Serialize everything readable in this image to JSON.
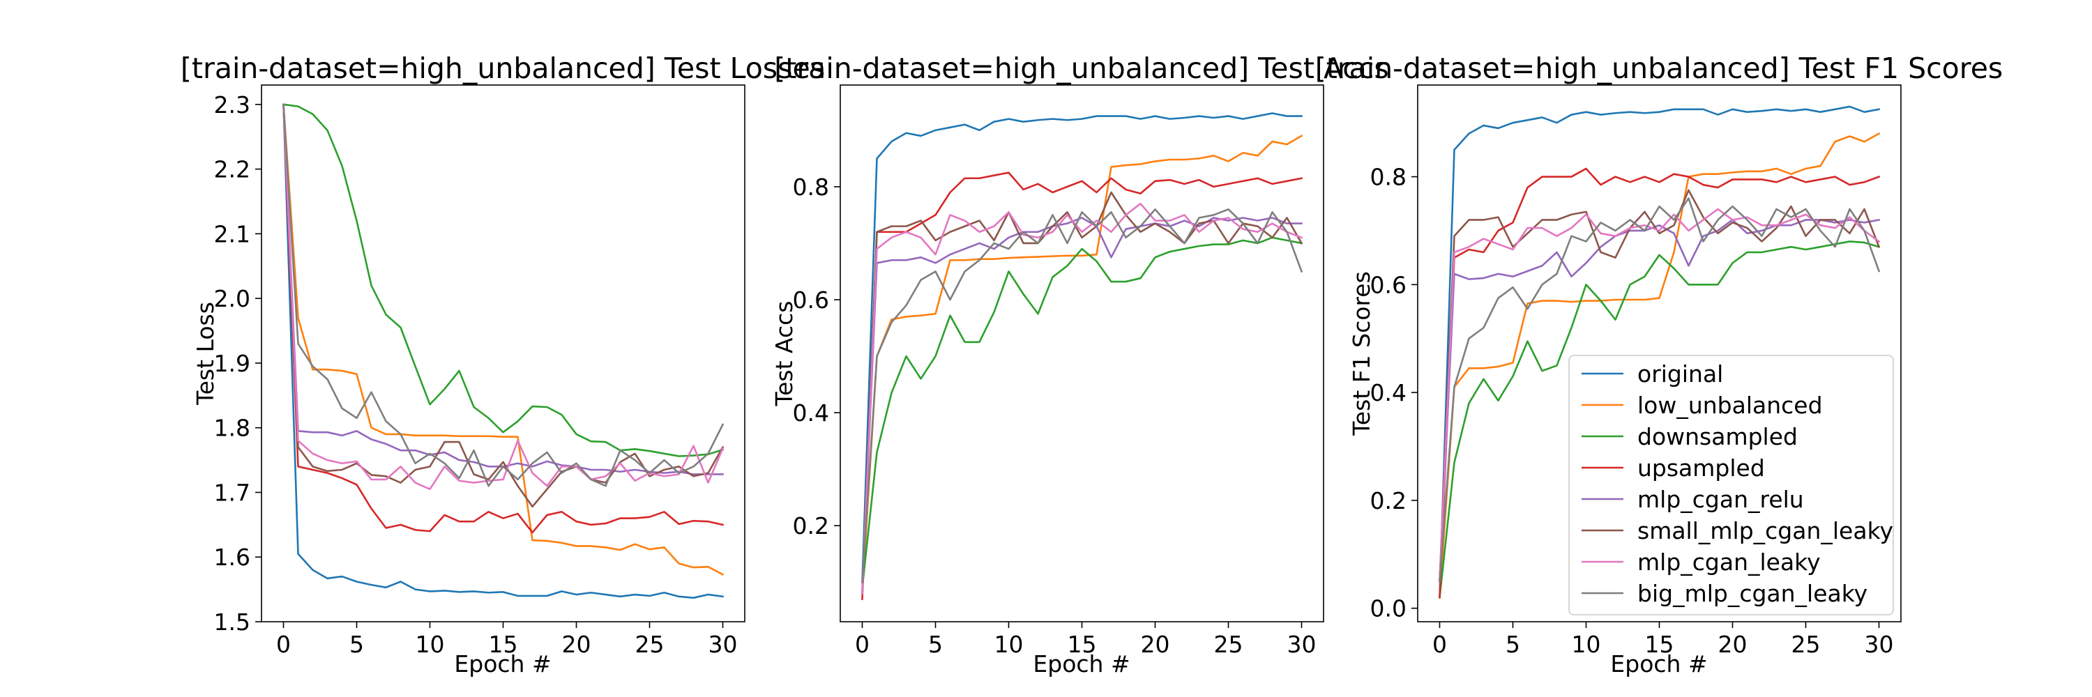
{
  "series_colors": [
    "#1f77b4",
    "#ff7f0e",
    "#2ca02c",
    "#d62728",
    "#9467bd",
    "#8c564b",
    "#e377c2",
    "#7f7f7f"
  ],
  "chart_data": [
    {
      "type": "line",
      "title": "[train-dataset=high_unbalanced] Test Losses",
      "xlabel": "Epoch #",
      "ylabel": "Test Loss",
      "xlim": [
        -1.5,
        31.5
      ],
      "ylim": [
        1.5,
        2.33
      ],
      "xticks": [
        0,
        5,
        10,
        15,
        20,
        25,
        30
      ],
      "yticks": [
        1.5,
        1.6,
        1.7,
        1.8,
        1.9,
        2.0,
        2.1,
        2.2,
        2.3
      ],
      "ytick_labels": [
        "1.5",
        "1.6",
        "1.7",
        "1.8",
        "1.9",
        "2.0",
        "2.1",
        "2.2",
        "2.3"
      ],
      "legend": null,
      "x": [
        0,
        1,
        2,
        3,
        4,
        5,
        6,
        7,
        8,
        9,
        10,
        11,
        12,
        13,
        14,
        15,
        16,
        17,
        18,
        19,
        20,
        21,
        22,
        23,
        24,
        25,
        26,
        27,
        28,
        29,
        30
      ],
      "series": [
        {
          "name": "original",
          "values": [
            2.3,
            1.605,
            1.58,
            1.567,
            1.57,
            1.562,
            1.557,
            1.553,
            1.562,
            1.55,
            1.547,
            1.548,
            1.546,
            1.547,
            1.545,
            1.546,
            1.54,
            1.54,
            1.54,
            1.547,
            1.542,
            1.545,
            1.542,
            1.539,
            1.542,
            1.54,
            1.545,
            1.539,
            1.537,
            1.542,
            1.539
          ]
        },
        {
          "name": "low_unbalanced",
          "values": [
            2.3,
            1.97,
            1.89,
            1.89,
            1.888,
            1.883,
            1.8,
            1.79,
            1.79,
            1.788,
            1.788,
            1.788,
            1.787,
            1.787,
            1.787,
            1.786,
            1.786,
            1.626,
            1.625,
            1.622,
            1.617,
            1.617,
            1.615,
            1.611,
            1.62,
            1.612,
            1.615,
            1.59,
            1.584,
            1.585,
            1.573
          ]
        },
        {
          "name": "downsampled",
          "values": [
            2.3,
            2.297,
            2.285,
            2.26,
            2.205,
            2.12,
            2.02,
            1.975,
            1.955,
            1.895,
            1.836,
            1.86,
            1.888,
            1.832,
            1.815,
            1.793,
            1.81,
            1.833,
            1.832,
            1.82,
            1.79,
            1.779,
            1.778,
            1.765,
            1.767,
            1.764,
            1.76,
            1.756,
            1.757,
            1.759,
            1.766
          ]
        },
        {
          "name": "upsampled",
          "values": [
            2.3,
            1.74,
            1.735,
            1.73,
            1.722,
            1.712,
            1.675,
            1.645,
            1.65,
            1.642,
            1.64,
            1.665,
            1.655,
            1.655,
            1.67,
            1.66,
            1.667,
            1.638,
            1.665,
            1.67,
            1.655,
            1.65,
            1.652,
            1.66,
            1.66,
            1.662,
            1.67,
            1.651,
            1.656,
            1.655,
            1.65
          ]
        },
        {
          "name": "mlp_cgan_relu",
          "values": [
            2.3,
            1.795,
            1.793,
            1.793,
            1.788,
            1.795,
            1.782,
            1.775,
            1.765,
            1.765,
            1.758,
            1.762,
            1.75,
            1.747,
            1.74,
            1.74,
            1.745,
            1.74,
            1.748,
            1.742,
            1.74,
            1.735,
            1.735,
            1.732,
            1.735,
            1.732,
            1.73,
            1.732,
            1.728,
            1.728,
            1.728
          ]
        },
        {
          "name": "small_mlp_cgan_leaky",
          "values": [
            2.3,
            1.77,
            1.74,
            1.733,
            1.735,
            1.745,
            1.727,
            1.725,
            1.715,
            1.735,
            1.74,
            1.778,
            1.778,
            1.728,
            1.72,
            1.747,
            1.71,
            1.678,
            1.705,
            1.732,
            1.74,
            1.72,
            1.715,
            1.747,
            1.76,
            1.725,
            1.735,
            1.74,
            1.725,
            1.73,
            1.77
          ]
        },
        {
          "name": "mlp_cgan_leaky",
          "values": [
            2.3,
            1.78,
            1.76,
            1.75,
            1.745,
            1.748,
            1.72,
            1.72,
            1.74,
            1.715,
            1.705,
            1.74,
            1.718,
            1.715,
            1.718,
            1.72,
            1.78,
            1.73,
            1.71,
            1.74,
            1.74,
            1.72,
            1.725,
            1.745,
            1.718,
            1.73,
            1.725,
            1.728,
            1.772,
            1.715,
            1.768
          ]
        },
        {
          "name": "big_mlp_cgan_leaky",
          "values": [
            2.3,
            1.93,
            1.895,
            1.875,
            1.83,
            1.815,
            1.855,
            1.81,
            1.79,
            1.745,
            1.76,
            1.745,
            1.722,
            1.765,
            1.71,
            1.74,
            1.72,
            1.745,
            1.762,
            1.73,
            1.745,
            1.72,
            1.71,
            1.765,
            1.75,
            1.73,
            1.75,
            1.73,
            1.74,
            1.76,
            1.805
          ]
        }
      ]
    },
    {
      "type": "line",
      "title": "[train-dataset=high_unbalanced] Test Accs",
      "xlabel": "Epoch #",
      "ylabel": "Test Accs",
      "xlim": [
        -1.5,
        31.5
      ],
      "ylim": [
        0.03,
        0.98
      ],
      "xticks": [
        0,
        5,
        10,
        15,
        20,
        25,
        30
      ],
      "yticks": [
        0.2,
        0.4,
        0.6,
        0.8
      ],
      "ytick_labels": [
        "0.2",
        "0.4",
        "0.6",
        "0.8"
      ],
      "legend": null,
      "x": [
        0,
        1,
        2,
        3,
        4,
        5,
        6,
        7,
        8,
        9,
        10,
        11,
        12,
        13,
        14,
        15,
        16,
        17,
        18,
        19,
        20,
        21,
        22,
        23,
        24,
        25,
        26,
        27,
        28,
        29,
        30
      ],
      "series": [
        {
          "name": "original",
          "values": [
            0.1,
            0.85,
            0.88,
            0.895,
            0.89,
            0.9,
            0.905,
            0.91,
            0.9,
            0.915,
            0.92,
            0.915,
            0.918,
            0.92,
            0.918,
            0.92,
            0.925,
            0.925,
            0.925,
            0.92,
            0.925,
            0.92,
            0.922,
            0.925,
            0.922,
            0.925,
            0.92,
            0.925,
            0.93,
            0.925,
            0.925
          ]
        },
        {
          "name": "low_unbalanced",
          "values": [
            0.08,
            0.5,
            0.565,
            0.57,
            0.572,
            0.575,
            0.67,
            0.67,
            0.672,
            0.672,
            0.674,
            0.675,
            0.676,
            0.677,
            0.678,
            0.678,
            0.68,
            0.835,
            0.838,
            0.84,
            0.845,
            0.848,
            0.848,
            0.85,
            0.855,
            0.845,
            0.86,
            0.855,
            0.88,
            0.875,
            0.89
          ]
        },
        {
          "name": "downsampled",
          "values": [
            0.09,
            0.33,
            0.435,
            0.5,
            0.46,
            0.5,
            0.572,
            0.525,
            0.525,
            0.578,
            0.65,
            0.61,
            0.575,
            0.64,
            0.66,
            0.69,
            0.668,
            0.632,
            0.632,
            0.638,
            0.675,
            0.685,
            0.69,
            0.695,
            0.698,
            0.698,
            0.705,
            0.7,
            0.71,
            0.705,
            0.7
          ]
        },
        {
          "name": "upsampled",
          "values": [
            0.07,
            0.72,
            0.72,
            0.72,
            0.735,
            0.75,
            0.79,
            0.815,
            0.815,
            0.82,
            0.825,
            0.795,
            0.805,
            0.79,
            0.8,
            0.81,
            0.79,
            0.815,
            0.795,
            0.788,
            0.81,
            0.812,
            0.805,
            0.812,
            0.8,
            0.805,
            0.81,
            0.815,
            0.805,
            0.81,
            0.815
          ]
        },
        {
          "name": "mlp_cgan_relu",
          "values": [
            0.08,
            0.665,
            0.67,
            0.67,
            0.675,
            0.665,
            0.68,
            0.69,
            0.7,
            0.69,
            0.71,
            0.72,
            0.72,
            0.73,
            0.735,
            0.745,
            0.73,
            0.675,
            0.725,
            0.73,
            0.735,
            0.73,
            0.74,
            0.73,
            0.745,
            0.74,
            0.745,
            0.74,
            0.745,
            0.735,
            0.735
          ]
        },
        {
          "name": "small_mlp_cgan_leaky",
          "values": [
            0.08,
            0.72,
            0.73,
            0.73,
            0.74,
            0.705,
            0.72,
            0.73,
            0.74,
            0.705,
            0.755,
            0.7,
            0.7,
            0.73,
            0.755,
            0.71,
            0.73,
            0.79,
            0.75,
            0.72,
            0.735,
            0.72,
            0.7,
            0.735,
            0.74,
            0.7,
            0.735,
            0.73,
            0.71,
            0.745,
            0.7
          ]
        },
        {
          "name": "mlp_cgan_leaky",
          "values": [
            0.08,
            0.69,
            0.71,
            0.72,
            0.71,
            0.68,
            0.75,
            0.74,
            0.72,
            0.73,
            0.755,
            0.715,
            0.71,
            0.72,
            0.75,
            0.72,
            0.74,
            0.72,
            0.75,
            0.77,
            0.74,
            0.74,
            0.75,
            0.72,
            0.74,
            0.745,
            0.725,
            0.72,
            0.735,
            0.72,
            0.71
          ]
        },
        {
          "name": "big_mlp_cgan_leaky",
          "values": [
            0.1,
            0.5,
            0.56,
            0.59,
            0.635,
            0.65,
            0.6,
            0.65,
            0.67,
            0.7,
            0.69,
            0.72,
            0.7,
            0.75,
            0.7,
            0.755,
            0.73,
            0.755,
            0.71,
            0.73,
            0.76,
            0.73,
            0.7,
            0.745,
            0.75,
            0.76,
            0.735,
            0.7,
            0.755,
            0.72,
            0.65
          ]
        }
      ]
    },
    {
      "type": "line",
      "title": "[train-dataset=high_unbalanced] Test F1 Scores",
      "xlabel": "Epoch #",
      "ylabel": "Test F1 Scores",
      "xlim": [
        -1.5,
        31.5
      ],
      "ylim": [
        -0.025,
        0.97
      ],
      "xticks": [
        0,
        5,
        10,
        15,
        20,
        25,
        30
      ],
      "yticks": [
        0.0,
        0.2,
        0.4,
        0.6,
        0.8
      ],
      "ytick_labels": [
        "0.0",
        "0.2",
        "0.4",
        "0.6",
        "0.8"
      ],
      "legend": "lower-right",
      "x": [
        0,
        1,
        2,
        3,
        4,
        5,
        6,
        7,
        8,
        9,
        10,
        11,
        12,
        13,
        14,
        15,
        16,
        17,
        18,
        19,
        20,
        21,
        22,
        23,
        24,
        25,
        26,
        27,
        28,
        29,
        30
      ],
      "series": [
        {
          "name": "original",
          "values": [
            0.02,
            0.85,
            0.88,
            0.895,
            0.89,
            0.9,
            0.905,
            0.91,
            0.9,
            0.915,
            0.92,
            0.915,
            0.918,
            0.92,
            0.918,
            0.92,
            0.925,
            0.925,
            0.925,
            0.915,
            0.925,
            0.92,
            0.922,
            0.925,
            0.922,
            0.925,
            0.92,
            0.925,
            0.93,
            0.92,
            0.925
          ]
        },
        {
          "name": "low_unbalanced",
          "values": [
            0.02,
            0.41,
            0.445,
            0.445,
            0.448,
            0.455,
            0.565,
            0.57,
            0.57,
            0.568,
            0.57,
            0.57,
            0.572,
            0.572,
            0.572,
            0.575,
            0.66,
            0.8,
            0.805,
            0.805,
            0.808,
            0.81,
            0.81,
            0.815,
            0.805,
            0.815,
            0.82,
            0.865,
            0.875,
            0.865,
            0.88
          ]
        },
        {
          "name": "downsampled",
          "values": [
            0.02,
            0.27,
            0.38,
            0.425,
            0.385,
            0.43,
            0.495,
            0.44,
            0.45,
            0.52,
            0.6,
            0.57,
            0.535,
            0.6,
            0.615,
            0.655,
            0.63,
            0.6,
            0.6,
            0.6,
            0.64,
            0.66,
            0.66,
            0.665,
            0.67,
            0.665,
            0.67,
            0.675,
            0.68,
            0.678,
            0.67
          ]
        },
        {
          "name": "upsampled",
          "values": [
            0.02,
            0.65,
            0.665,
            0.66,
            0.7,
            0.715,
            0.78,
            0.8,
            0.8,
            0.8,
            0.815,
            0.785,
            0.8,
            0.79,
            0.8,
            0.79,
            0.805,
            0.8,
            0.785,
            0.78,
            0.795,
            0.795,
            0.795,
            0.79,
            0.8,
            0.79,
            0.795,
            0.8,
            0.785,
            0.79,
            0.8
          ]
        },
        {
          "name": "mlp_cgan_relu",
          "values": [
            0.05,
            0.62,
            0.61,
            0.612,
            0.62,
            0.615,
            0.625,
            0.635,
            0.66,
            0.615,
            0.64,
            0.67,
            0.69,
            0.7,
            0.7,
            0.71,
            0.695,
            0.635,
            0.69,
            0.7,
            0.72,
            0.695,
            0.7,
            0.71,
            0.71,
            0.72,
            0.72,
            0.715,
            0.72,
            0.715,
            0.72
          ]
        },
        {
          "name": "small_mlp_cgan_leaky",
          "values": [
            0.05,
            0.69,
            0.72,
            0.72,
            0.725,
            0.67,
            0.695,
            0.72,
            0.72,
            0.73,
            0.735,
            0.66,
            0.65,
            0.705,
            0.735,
            0.695,
            0.71,
            0.775,
            0.725,
            0.695,
            0.715,
            0.705,
            0.68,
            0.705,
            0.745,
            0.69,
            0.72,
            0.72,
            0.695,
            0.74,
            0.67
          ]
        },
        {
          "name": "mlp_cgan_leaky",
          "values": [
            0.05,
            0.66,
            0.67,
            0.685,
            0.675,
            0.665,
            0.705,
            0.705,
            0.69,
            0.705,
            0.73,
            0.695,
            0.69,
            0.705,
            0.71,
            0.7,
            0.73,
            0.7,
            0.72,
            0.74,
            0.72,
            0.725,
            0.71,
            0.71,
            0.72,
            0.73,
            0.71,
            0.705,
            0.725,
            0.7,
            0.68
          ]
        },
        {
          "name": "big_mlp_cgan_leaky",
          "values": [
            0.05,
            0.41,
            0.5,
            0.52,
            0.575,
            0.595,
            0.555,
            0.6,
            0.62,
            0.69,
            0.68,
            0.715,
            0.7,
            0.72,
            0.7,
            0.745,
            0.72,
            0.76,
            0.68,
            0.72,
            0.745,
            0.72,
            0.69,
            0.74,
            0.725,
            0.74,
            0.7,
            0.67,
            0.74,
            0.7,
            0.625
          ]
        }
      ]
    }
  ]
}
